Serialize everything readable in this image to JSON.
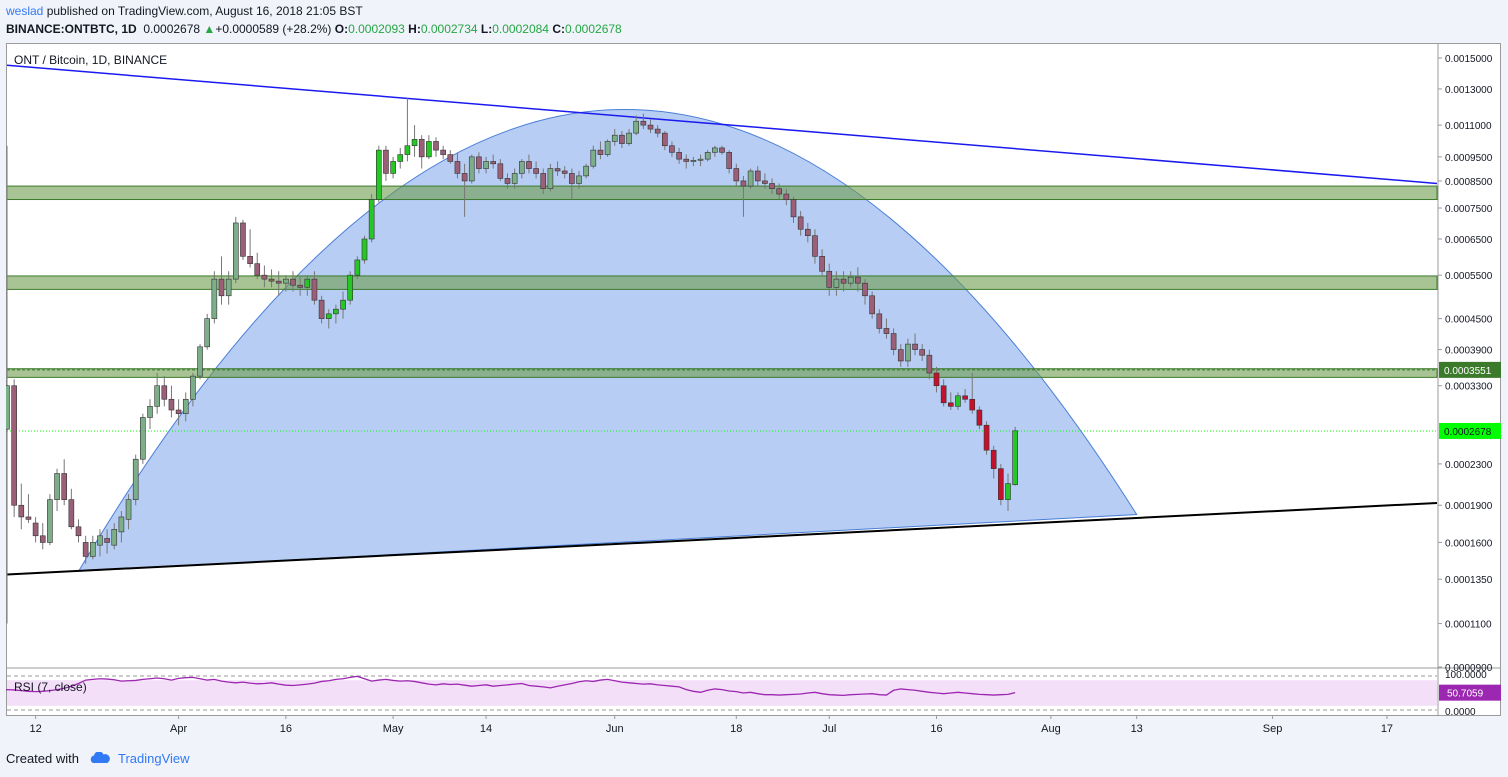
{
  "header": {
    "author": "weslad",
    "published_text": "published on TradingView.com, August 16, 2018 21:05 BST",
    "symbol": "BINANCE:ONTBTC, 1D",
    "last": "0.0002678",
    "change": "+0.0000589 (+28.2%)",
    "open_label": "O:",
    "open": "0.0002093",
    "high_label": "H:",
    "high": "0.0002734",
    "low_label": "L:",
    "low": "0.0002084",
    "close_label": "C:",
    "close": "0.0002678"
  },
  "footer": {
    "created_with": "Created with",
    "brand": "TradingView"
  },
  "colors": {
    "up": "#26c626",
    "down": "#c4122c",
    "down_muted": "#9b5f78",
    "up_muted": "#7cae8a",
    "zone_fill": "#6e9d4c",
    "dome_fill": "#6f9ce8",
    "resistance_line": "#1a1af0",
    "support_line": "#000000",
    "rsi_line": "#9c27b0",
    "rsi_band": "#f3dff8",
    "last_price_badge": "#00ff00",
    "level_badge": "#3a7a2a"
  },
  "chart_data": {
    "type": "candlestick",
    "title": "ONT / Bitcoin, 1D, BINANCE",
    "y_scale": "log",
    "ylim": [
      9e-05,
      0.0016
    ],
    "y_ticks": [
      "0.0015000",
      "0.0013000",
      "0.0011000",
      "0.0009500",
      "0.0008500",
      "0.0007500",
      "0.0006500",
      "0.0005500",
      "0.0004500",
      "0.0003900",
      "0.0003300",
      "0.0002300",
      "0.0001900",
      "0.0001600",
      "0.0001350",
      "0.0001100",
      "0.0000900"
    ],
    "x_ticks": [
      {
        "label": "12",
        "date": "2018-03-12"
      },
      {
        "label": "Apr",
        "date": "2018-04-01"
      },
      {
        "label": "16",
        "date": "2018-04-16"
      },
      {
        "label": "May",
        "date": "2018-05-01"
      },
      {
        "label": "14",
        "date": "2018-05-14"
      },
      {
        "label": "Jun",
        "date": "2018-06-01"
      },
      {
        "label": "18",
        "date": "2018-06-18"
      },
      {
        "label": "Jul",
        "date": "2018-07-01"
      },
      {
        "label": "16",
        "date": "2018-07-16"
      },
      {
        "label": "Aug",
        "date": "2018-08-01"
      },
      {
        "label": "13",
        "date": "2018-08-13"
      },
      {
        "label": "Sep",
        "date": "2018-09-01"
      },
      {
        "label": "17",
        "date": "2018-09-17"
      }
    ],
    "xlim": [
      "2018-03-08",
      "2018-09-24"
    ],
    "first_date": "2018-03-08",
    "candles": [
      [
        0.00027,
        0.001,
        0.00011,
        0.00033
      ],
      [
        0.00033,
        0.00034,
        0.00018,
        0.00019
      ],
      [
        0.00019,
        0.00021,
        0.00017,
        0.00018
      ],
      [
        0.00018,
        0.0002,
        0.000175,
        0.000178
      ],
      [
        0.000175,
        0.00018,
        0.00016,
        0.000165
      ],
      [
        0.000165,
        0.000175,
        0.000155,
        0.00016
      ],
      [
        0.00016,
        0.0002,
        0.000158,
        0.000195
      ],
      [
        0.000195,
        0.000225,
        0.000185,
        0.00022
      ],
      [
        0.00022,
        0.000235,
        0.00019,
        0.000195
      ],
      [
        0.000195,
        0.000205,
        0.00017,
        0.000172
      ],
      [
        0.000172,
        0.000178,
        0.00016,
        0.000165
      ],
      [
        0.00016,
        0.000165,
        0.000145,
        0.00015
      ],
      [
        0.00015,
        0.000165,
        0.000148,
        0.00016
      ],
      [
        0.000158,
        0.00017,
        0.00015,
        0.000165
      ],
      [
        0.000163,
        0.00017,
        0.000152,
        0.00016
      ],
      [
        0.000158,
        0.000175,
        0.000155,
        0.00017
      ],
      [
        0.000168,
        0.000185,
        0.00016,
        0.00018
      ],
      [
        0.000178,
        0.0002,
        0.00017,
        0.000195
      ],
      [
        0.000195,
        0.00024,
        0.00019,
        0.000235
      ],
      [
        0.000235,
        0.00029,
        0.00023,
        0.000285
      ],
      [
        0.000285,
        0.00031,
        0.00027,
        0.0003
      ],
      [
        0.0003,
        0.00035,
        0.00029,
        0.00033
      ],
      [
        0.00033,
        0.000345,
        0.0003,
        0.00031
      ],
      [
        0.00031,
        0.00033,
        0.000285,
        0.000295
      ],
      [
        0.000295,
        0.00031,
        0.000275,
        0.00029
      ],
      [
        0.00029,
        0.00032,
        0.00028,
        0.00031
      ],
      [
        0.00031,
        0.00035,
        0.0003,
        0.000345
      ],
      [
        0.000345,
        0.0004,
        0.00034,
        0.000395
      ],
      [
        0.000395,
        0.00046,
        0.00039,
        0.00045
      ],
      [
        0.00045,
        0.00056,
        0.00044,
        0.00054
      ],
      [
        0.00054,
        0.0006,
        0.00048,
        0.0005
      ],
      [
        0.0005,
        0.00056,
        0.00048,
        0.00054
      ],
      [
        0.00054,
        0.00072,
        0.00053,
        0.0007
      ],
      [
        0.0007,
        0.00071,
        0.00059,
        0.0006
      ],
      [
        0.0006,
        0.00068,
        0.00057,
        0.00058
      ],
      [
        0.00058,
        0.00061,
        0.00054,
        0.00055
      ],
      [
        0.00055,
        0.000575,
        0.00052,
        0.00054
      ],
      [
        0.00054,
        0.000565,
        0.00052,
        0.000535
      ],
      [
        0.000535,
        0.00056,
        0.0005,
        0.00053
      ],
      [
        0.00053,
        0.00055,
        0.00051,
        0.00054
      ],
      [
        0.00054,
        0.00056,
        0.00051,
        0.000525
      ],
      [
        0.000525,
        0.000545,
        0.0005,
        0.00052
      ],
      [
        0.00052,
        0.00055,
        0.0005,
        0.00054
      ],
      [
        0.00054,
        0.00056,
        0.00048,
        0.00049
      ],
      [
        0.00049,
        0.0005,
        0.00044,
        0.00045
      ],
      [
        0.00045,
        0.00047,
        0.00043,
        0.00046
      ],
      [
        0.00046,
        0.00048,
        0.00044,
        0.00047
      ],
      [
        0.00047,
        0.00051,
        0.00045,
        0.00049
      ],
      [
        0.00049,
        0.00056,
        0.00048,
        0.00055
      ],
      [
        0.00055,
        0.0006,
        0.00054,
        0.00059
      ],
      [
        0.00059,
        0.00066,
        0.00058,
        0.00065
      ],
      [
        0.00065,
        0.0008,
        0.00064,
        0.00078
      ],
      [
        0.00078,
        0.001,
        0.00077,
        0.00098
      ],
      [
        0.00098,
        0.001,
        0.00085,
        0.00088
      ],
      [
        0.00088,
        0.00095,
        0.00086,
        0.00093
      ],
      [
        0.00093,
        0.00099,
        0.0009,
        0.00096
      ],
      [
        0.00096,
        0.00125,
        0.00093,
        0.001
      ],
      [
        0.001,
        0.0011,
        0.00095,
        0.00103
      ],
      [
        0.00103,
        0.00105,
        0.0009,
        0.00095
      ],
      [
        0.00095,
        0.00105,
        0.00094,
        0.00102
      ],
      [
        0.00102,
        0.00104,
        0.00095,
        0.00098
      ],
      [
        0.00098,
        0.001,
        0.00094,
        0.00096
      ],
      [
        0.00096,
        0.00098,
        0.00092,
        0.00093
      ],
      [
        0.00093,
        0.00097,
        0.00086,
        0.00088
      ],
      [
        0.00088,
        0.00092,
        0.00072,
        0.00085
      ],
      [
        0.00085,
        0.00096,
        0.00084,
        0.00095
      ],
      [
        0.00095,
        0.00097,
        0.00088,
        0.0009
      ],
      [
        0.0009,
        0.00095,
        0.00088,
        0.00093
      ],
      [
        0.00093,
        0.00096,
        0.0009,
        0.00092
      ],
      [
        0.00092,
        0.00094,
        0.00085,
        0.00086
      ],
      [
        0.00086,
        0.00088,
        0.00082,
        0.00084
      ],
      [
        0.00084,
        0.0009,
        0.00082,
        0.00088
      ],
      [
        0.00088,
        0.00094,
        0.00086,
        0.00093
      ],
      [
        0.00093,
        0.00096,
        0.00088,
        0.0009
      ],
      [
        0.0009,
        0.00093,
        0.00086,
        0.00088
      ],
      [
        0.00088,
        0.0009,
        0.0008,
        0.00082
      ],
      [
        0.00082,
        0.00092,
        0.00081,
        0.0009
      ],
      [
        0.0009,
        0.00093,
        0.00087,
        0.00089
      ],
      [
        0.00089,
        0.00091,
        0.00086,
        0.00088
      ],
      [
        0.00088,
        0.0009,
        0.00078,
        0.00084
      ],
      [
        0.00084,
        0.00089,
        0.00082,
        0.00087
      ],
      [
        0.00087,
        0.00092,
        0.00086,
        0.00091
      ],
      [
        0.00091,
        0.001,
        0.0009,
        0.00098
      ],
      [
        0.00098,
        0.00102,
        0.00094,
        0.00096
      ],
      [
        0.00096,
        0.00103,
        0.00095,
        0.00102
      ],
      [
        0.00102,
        0.00108,
        0.001,
        0.00105
      ],
      [
        0.00105,
        0.00107,
        0.00099,
        0.00101
      ],
      [
        0.00101,
        0.00108,
        0.001,
        0.00106
      ],
      [
        0.00106,
        0.00115,
        0.00105,
        0.00112
      ],
      [
        0.00112,
        0.00116,
        0.00108,
        0.0011
      ],
      [
        0.0011,
        0.00113,
        0.00106,
        0.00108
      ],
      [
        0.00108,
        0.0011,
        0.00104,
        0.00106
      ],
      [
        0.00106,
        0.00107,
        0.00098,
        0.001
      ],
      [
        0.001,
        0.00102,
        0.00095,
        0.00097
      ],
      [
        0.00097,
        0.00099,
        0.00092,
        0.00094
      ],
      [
        0.00094,
        0.00096,
        0.0009,
        0.00093
      ],
      [
        0.00093,
        0.00095,
        0.00091,
        0.000935
      ],
      [
        0.000935,
        0.00096,
        0.00091,
        0.00094
      ],
      [
        0.00094,
        0.00098,
        0.00093,
        0.00097
      ],
      [
        0.00097,
        0.001,
        0.00095,
        0.00099
      ],
      [
        0.00099,
        0.001,
        0.00096,
        0.00097
      ],
      [
        0.00097,
        0.00098,
        0.00088,
        0.0009
      ],
      [
        0.0009,
        0.00092,
        0.00083,
        0.00085
      ],
      [
        0.00085,
        0.00087,
        0.00072,
        0.00083
      ],
      [
        0.00083,
        0.0009,
        0.00082,
        0.00089
      ],
      [
        0.00089,
        0.00091,
        0.00083,
        0.00085
      ],
      [
        0.00085,
        0.00088,
        0.00082,
        0.00084
      ],
      [
        0.00084,
        0.00086,
        0.0008,
        0.00082
      ],
      [
        0.00082,
        0.00084,
        0.00078,
        0.0008
      ],
      [
        0.0008,
        0.00082,
        0.00076,
        0.00078
      ],
      [
        0.00078,
        0.00079,
        0.0007,
        0.00072
      ],
      [
        0.00072,
        0.00074,
        0.00066,
        0.00068
      ],
      [
        0.00068,
        0.0007,
        0.00064,
        0.00066
      ],
      [
        0.00066,
        0.00068,
        0.00058,
        0.0006
      ],
      [
        0.0006,
        0.00062,
        0.00055,
        0.00056
      ],
      [
        0.00056,
        0.00058,
        0.0005,
        0.00052
      ],
      [
        0.00052,
        0.00056,
        0.0005,
        0.00054
      ],
      [
        0.00054,
        0.00056,
        0.00051,
        0.00053
      ],
      [
        0.00053,
        0.00056,
        0.00052,
        0.000545
      ],
      [
        0.000545,
        0.00057,
        0.00051,
        0.00053
      ],
      [
        0.00053,
        0.00054,
        0.00048,
        0.0005
      ],
      [
        0.0005,
        0.00051,
        0.00045,
        0.00046
      ],
      [
        0.00046,
        0.00047,
        0.00042,
        0.00043
      ],
      [
        0.00043,
        0.00045,
        0.00041,
        0.00042
      ],
      [
        0.00042,
        0.00043,
        0.00038,
        0.00039
      ],
      [
        0.00039,
        0.0004,
        0.00036,
        0.00037
      ],
      [
        0.00037,
        0.00041,
        0.00036,
        0.0004
      ],
      [
        0.0004,
        0.00042,
        0.00038,
        0.00039
      ],
      [
        0.00039,
        0.0004,
        0.00037,
        0.00038
      ],
      [
        0.00038,
        0.00039,
        0.00034,
        0.00035
      ],
      [
        0.00035,
        0.00036,
        0.00032,
        0.00033
      ],
      [
        0.00033,
        0.00034,
        0.0003,
        0.000305
      ],
      [
        0.000305,
        0.00032,
        0.000295,
        0.0003
      ],
      [
        0.0003,
        0.00032,
        0.000295,
        0.000315
      ],
      [
        0.000315,
        0.000325,
        0.000305,
        0.00031
      ],
      [
        0.00031,
        0.00035,
        0.00029,
        0.000295
      ],
      [
        0.000295,
        0.0003,
        0.00027,
        0.000275
      ],
      [
        0.000275,
        0.00028,
        0.00024,
        0.000245
      ],
      [
        0.000245,
        0.00025,
        0.000215,
        0.000225
      ],
      [
        0.000225,
        0.00023,
        0.00019,
        0.000195
      ],
      [
        0.000195,
        0.00022,
        0.000185,
        0.00021
      ],
      [
        0.000209,
        0.000273,
        0.000208,
        0.000268
      ]
    ],
    "zones": [
      {
        "low": 0.00078,
        "high": 0.00083
      },
      {
        "low": 0.000515,
        "high": 0.000548
      },
      {
        "low": 0.000343,
        "high": 0.000357
      }
    ],
    "level_line": 0.0003551,
    "level_label": "0.0003551",
    "last_price": 0.0002678,
    "last_price_label": "0.0002678",
    "resistance_line": [
      {
        "date": "2018-03-08",
        "price": 0.00145
      },
      {
        "date": "2018-09-24",
        "price": 0.00084
      }
    ],
    "support_line": [
      {
        "date": "2018-03-08",
        "price": 0.000138
      },
      {
        "date": "2018-09-24",
        "price": 0.000192
      }
    ],
    "dome": {
      "start": {
        "date": "2018-03-18",
        "price": 0.00014
      },
      "peak": {
        "date": "2018-05-31",
        "price": 0.00118
      },
      "end": {
        "date": "2018-08-13",
        "price": 0.000182
      }
    },
    "rsi": {
      "label": "RSI (7, close)",
      "value_label": "50.7059",
      "ylim": [
        0,
        100
      ],
      "tick_labels": [
        "100.0000",
        "0.0000"
      ],
      "values": [
        60,
        58,
        57,
        56,
        58,
        60,
        59,
        57,
        55,
        54,
        55,
        57,
        60,
        64,
        70,
        78,
        88,
        90,
        92,
        91,
        89,
        85,
        86,
        87,
        90,
        92,
        94,
        92,
        88,
        93,
        95,
        96,
        92,
        88,
        90,
        85,
        82,
        80,
        82,
        79,
        77,
        78,
        80,
        76,
        73,
        72,
        74,
        76,
        79,
        84,
        86,
        90,
        92,
        96,
        99,
        92,
        85,
        88,
        90,
        87,
        85,
        86,
        84,
        80,
        76,
        74,
        77,
        75,
        76,
        73,
        70,
        72,
        74,
        70,
        72,
        74,
        76,
        78,
        72,
        70,
        68,
        65,
        70,
        74,
        78,
        83,
        86,
        84,
        88,
        90,
        86,
        82,
        80,
        78,
        76,
        77,
        74,
        72,
        70,
        68,
        60,
        55,
        52,
        58,
        62,
        60,
        56,
        54,
        50,
        52,
        48,
        45,
        45,
        44,
        45,
        46,
        47,
        50,
        52,
        48,
        45,
        44,
        43,
        45,
        46,
        47,
        48,
        45,
        44,
        58,
        62,
        60,
        58,
        55,
        52,
        50,
        48,
        50,
        52,
        50,
        48,
        46,
        45,
        44,
        45,
        46,
        51
      ]
    }
  }
}
